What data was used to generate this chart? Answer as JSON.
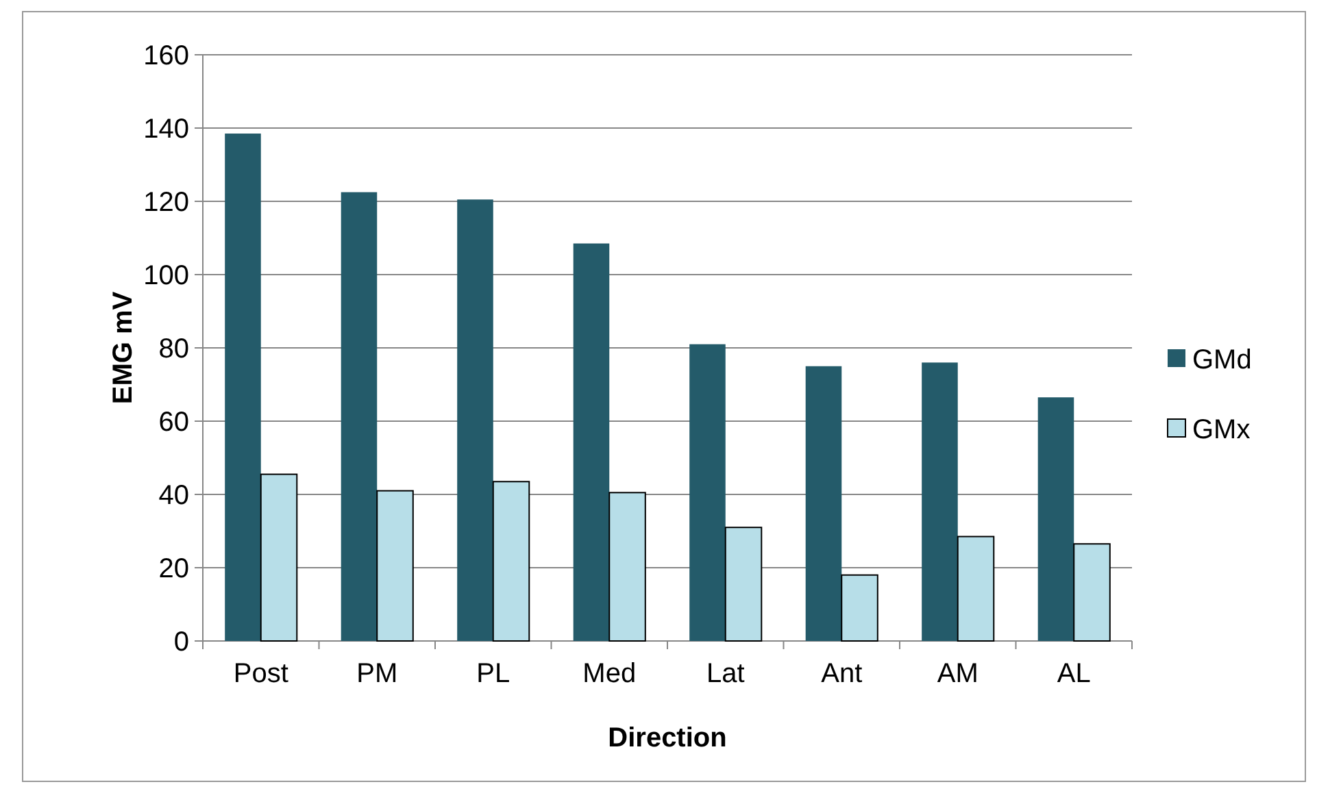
{
  "chart_data": {
    "type": "bar",
    "xlabel": "Direction",
    "ylabel": "EMG mV",
    "categories": [
      "Post",
      "PM",
      "PL",
      "Med",
      "Lat",
      "Ant",
      "AM",
      "AL"
    ],
    "series": [
      {
        "name": "GMd",
        "color": "#245b6a",
        "values": [
          138.5,
          122.5,
          120.5,
          108.5,
          81,
          75,
          76,
          66.5
        ]
      },
      {
        "name": "GMx",
        "color": "#b7dee8",
        "values": [
          45.5,
          41,
          43.5,
          40.5,
          31,
          18,
          28.5,
          26.5
        ]
      }
    ],
    "ylim": [
      0,
      160
    ],
    "yticks": [
      0,
      20,
      40,
      60,
      80,
      100,
      120,
      140,
      160
    ],
    "grid": "y",
    "legend": "right"
  }
}
